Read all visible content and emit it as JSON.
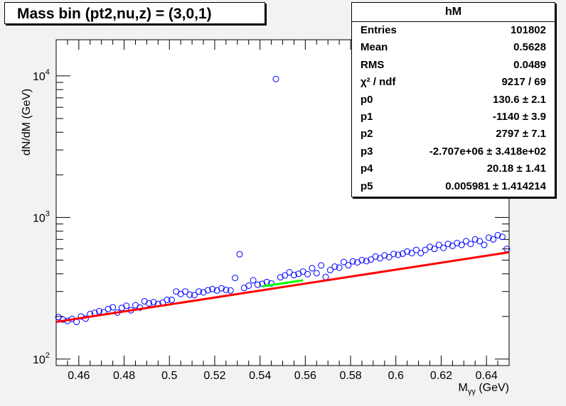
{
  "title": "Mass bin (pt2,nu,z) = (3,0,1)",
  "stats": {
    "name": "hM",
    "rows": [
      {
        "label": "Entries",
        "value": "101802"
      },
      {
        "label": "Mean",
        "value": "0.5628"
      },
      {
        "label": "RMS",
        "value": "0.0489"
      },
      {
        "label": "χ² / ndf",
        "value": "9217 / 69"
      },
      {
        "label": "p0",
        "value": "130.6 ± 2.1"
      },
      {
        "label": "p1",
        "value": "-1140 ± 3.9"
      },
      {
        "label": "p2",
        "value": "2797 ± 7.1"
      },
      {
        "label": "p3",
        "value": "-2.707e+06 ± 3.418e+02"
      },
      {
        "label": "p4",
        "value": "20.18 ± 1.41"
      },
      {
        "label": "p5",
        "value": "0.005981 ± 1.414214"
      }
    ]
  },
  "colors": {
    "points": "#0000ff",
    "fit": "#ff0000",
    "peak": "#00ff00"
  },
  "chart_data": {
    "type": "scatter",
    "title": "Mass bin (pt2,nu,z) = (3,0,1)",
    "xlabel": "M",
    "xlabel_sub": "γγ",
    "xlabel_unit": " (GeV)",
    "ylabel": "dN/dM (GeV)",
    "xlim": [
      0.45,
      0.65
    ],
    "ylim": [
      90,
      18000
    ],
    "yscale": "log",
    "xticks": [
      "0.46",
      "0.48",
      "0.5",
      "0.52",
      "0.54",
      "0.56",
      "0.58",
      "0.6",
      "0.62",
      "0.64"
    ],
    "xtick_values": [
      0.46,
      0.48,
      0.5,
      0.52,
      0.54,
      0.56,
      0.58,
      0.6,
      0.62,
      0.64
    ],
    "yticks": [
      {
        "value": 100,
        "base": "10",
        "exp": "2"
      },
      {
        "value": 1000,
        "base": "10",
        "exp": "3"
      },
      {
        "value": 10000,
        "base": "10",
        "exp": "4"
      }
    ],
    "points": [
      [
        0.451,
        198
      ],
      [
        0.453,
        190
      ],
      [
        0.455,
        186
      ],
      [
        0.457,
        192
      ],
      [
        0.459,
        183
      ],
      [
        0.461,
        200
      ],
      [
        0.463,
        193
      ],
      [
        0.465,
        208
      ],
      [
        0.467,
        212
      ],
      [
        0.469,
        218
      ],
      [
        0.471,
        214
      ],
      [
        0.473,
        226
      ],
      [
        0.475,
        232
      ],
      [
        0.477,
        213
      ],
      [
        0.479,
        230
      ],
      [
        0.481,
        238
      ],
      [
        0.483,
        221
      ],
      [
        0.485,
        240
      ],
      [
        0.487,
        231
      ],
      [
        0.489,
        256
      ],
      [
        0.491,
        247
      ],
      [
        0.493,
        252
      ],
      [
        0.495,
        245
      ],
      [
        0.497,
        250
      ],
      [
        0.499,
        262
      ],
      [
        0.501,
        262
      ],
      [
        0.503,
        300
      ],
      [
        0.505,
        288
      ],
      [
        0.507,
        300
      ],
      [
        0.509,
        285
      ],
      [
        0.511,
        283
      ],
      [
        0.513,
        300
      ],
      [
        0.515,
        296
      ],
      [
        0.517,
        306
      ],
      [
        0.519,
        312
      ],
      [
        0.521,
        305
      ],
      [
        0.523,
        316
      ],
      [
        0.525,
        308
      ],
      [
        0.527,
        305
      ],
      [
        0.529,
        374
      ],
      [
        0.531,
        550
      ],
      [
        0.533,
        318
      ],
      [
        0.535,
        330
      ],
      [
        0.537,
        360
      ],
      [
        0.539,
        335
      ],
      [
        0.541,
        340
      ],
      [
        0.543,
        350
      ],
      [
        0.545,
        342
      ],
      [
        0.547,
        9500
      ],
      [
        0.549,
        378
      ],
      [
        0.551,
        390
      ],
      [
        0.553,
        410
      ],
      [
        0.555,
        392
      ],
      [
        0.557,
        400
      ],
      [
        0.559,
        415
      ],
      [
        0.561,
        398
      ],
      [
        0.563,
        438
      ],
      [
        0.565,
        404
      ],
      [
        0.567,
        458
      ],
      [
        0.569,
        380
      ],
      [
        0.571,
        425
      ],
      [
        0.573,
        450
      ],
      [
        0.575,
        442
      ],
      [
        0.577,
        485
      ],
      [
        0.579,
        460
      ],
      [
        0.581,
        490
      ],
      [
        0.583,
        482
      ],
      [
        0.585,
        500
      ],
      [
        0.587,
        492
      ],
      [
        0.589,
        505
      ],
      [
        0.591,
        530
      ],
      [
        0.593,
        515
      ],
      [
        0.595,
        540
      ],
      [
        0.597,
        525
      ],
      [
        0.599,
        552
      ],
      [
        0.601,
        545
      ],
      [
        0.603,
        555
      ],
      [
        0.605,
        575
      ],
      [
        0.607,
        560
      ],
      [
        0.609,
        590
      ],
      [
        0.611,
        560
      ],
      [
        0.613,
        590
      ],
      [
        0.615,
        620
      ],
      [
        0.617,
        600
      ],
      [
        0.619,
        640
      ],
      [
        0.621,
        610
      ],
      [
        0.623,
        650
      ],
      [
        0.625,
        630
      ],
      [
        0.627,
        660
      ],
      [
        0.629,
        640
      ],
      [
        0.631,
        680
      ],
      [
        0.633,
        650
      ],
      [
        0.635,
        700
      ],
      [
        0.637,
        680
      ],
      [
        0.639,
        640
      ],
      [
        0.641,
        720
      ],
      [
        0.643,
        700
      ],
      [
        0.645,
        750
      ],
      [
        0.647,
        730
      ],
      [
        0.649,
        600
      ]
    ],
    "fit_line": {
      "x": [
        0.45,
        0.65
      ],
      "y": [
        183,
        568
      ]
    },
    "peak_line": {
      "x": [
        0.541,
        0.559
      ],
      "y": [
        326,
        360
      ]
    }
  }
}
